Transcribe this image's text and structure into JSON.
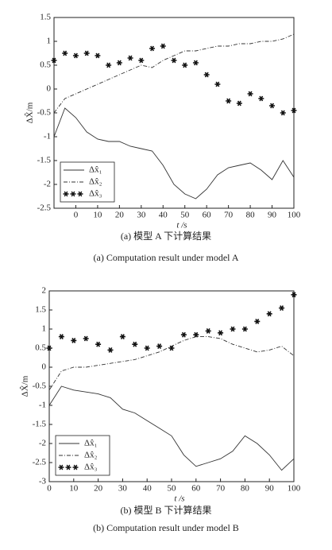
{
  "chart_data": [
    {
      "type": "line",
      "xlabel": "t /s",
      "ylabel": "ΔX̂/m",
      "caption_cn": "(a) 模型 A 下计算结果",
      "caption_en": "(a) Computation result under model A",
      "xlim": [
        -10,
        100
      ],
      "xticks": [
        0,
        10,
        20,
        30,
        40,
        50,
        60,
        70,
        80,
        90,
        100
      ],
      "ylim": [
        -2.5,
        1.5
      ],
      "yticks": [
        -2.5,
        -2,
        -1.5,
        -1,
        -0.5,
        0,
        0.5,
        1,
        1.5
      ],
      "legend": "lower left",
      "x": [
        -10,
        -5,
        0,
        5,
        10,
        15,
        20,
        25,
        30,
        35,
        40,
        45,
        50,
        55,
        60,
        65,
        70,
        75,
        80,
        85,
        90,
        95,
        100
      ],
      "series": [
        {
          "name": "Δx̂₁",
          "color": "#333333",
          "style": "solid",
          "values": [
            -1,
            -0.4,
            -0.6,
            -0.9,
            -1.05,
            -1.1,
            -1.1,
            -1.2,
            -1.25,
            -1.3,
            -1.6,
            -2.0,
            -2.2,
            -2.3,
            -2.1,
            -1.8,
            -1.65,
            -1.6,
            -1.55,
            -1.7,
            -1.9,
            -1.5,
            -1.85
          ]
        },
        {
          "name": "Δx̂₂",
          "color": "#333333",
          "style": "dashdot",
          "values": [
            -0.5,
            -0.2,
            -0.1,
            0.0,
            0.1,
            0.2,
            0.3,
            0.4,
            0.5,
            0.45,
            0.6,
            0.7,
            0.8,
            0.8,
            0.85,
            0.9,
            0.9,
            0.95,
            0.95,
            1.0,
            1.0,
            1.05,
            1.15
          ]
        },
        {
          "name": "Δx̂₃",
          "color": "#111111",
          "style": "star",
          "values": [
            0.6,
            0.75,
            0.7,
            0.75,
            0.7,
            0.5,
            0.55,
            0.65,
            0.6,
            0.85,
            0.9,
            0.6,
            0.5,
            0.55,
            0.3,
            0.1,
            -0.25,
            -0.3,
            -0.1,
            -0.2,
            -0.35,
            -0.5,
            -0.45
          ]
        }
      ]
    },
    {
      "type": "line",
      "xlabel": "t /s",
      "ylabel": "ΔX̂/m",
      "caption_cn": "(b) 模型 B 下计算结果",
      "caption_en": "(b) Computation result under model B",
      "xlim": [
        0,
        100
      ],
      "xticks": [
        0,
        10,
        20,
        30,
        40,
        50,
        60,
        70,
        80,
        90,
        100
      ],
      "ylim": [
        -3,
        2
      ],
      "yticks": [
        -3,
        -2.5,
        -2,
        -1.5,
        -1,
        -0.5,
        0,
        0.5,
        1,
        1.5,
        2
      ],
      "legend": "lower left",
      "x": [
        0,
        5,
        10,
        15,
        20,
        25,
        30,
        35,
        40,
        45,
        50,
        55,
        60,
        65,
        70,
        75,
        80,
        85,
        90,
        95,
        100
      ],
      "series": [
        {
          "name": "Δx̂₁",
          "color": "#333333",
          "style": "solid",
          "values": [
            -1,
            -0.5,
            -0.6,
            -0.65,
            -0.7,
            -0.8,
            -1.1,
            -1.2,
            -1.4,
            -1.6,
            -1.8,
            -2.3,
            -2.6,
            -2.5,
            -2.4,
            -2.2,
            -1.8,
            -2.0,
            -2.3,
            -2.7,
            -2.4
          ]
        },
        {
          "name": "Δx̂₂",
          "color": "#333333",
          "style": "dashdot",
          "values": [
            -0.6,
            -0.1,
            0.0,
            0.0,
            0.05,
            0.1,
            0.15,
            0.2,
            0.3,
            0.4,
            0.55,
            0.7,
            0.8,
            0.8,
            0.75,
            0.6,
            0.5,
            0.4,
            0.45,
            0.55,
            0.3
          ]
        },
        {
          "name": "Δx̂₃",
          "color": "#111111",
          "style": "star",
          "values": [
            0.5,
            0.8,
            0.7,
            0.75,
            0.6,
            0.45,
            0.8,
            0.6,
            0.5,
            0.55,
            0.5,
            0.85,
            0.85,
            0.95,
            0.9,
            1.0,
            1.0,
            1.2,
            1.4,
            1.55,
            1.9
          ]
        }
      ]
    }
  ]
}
